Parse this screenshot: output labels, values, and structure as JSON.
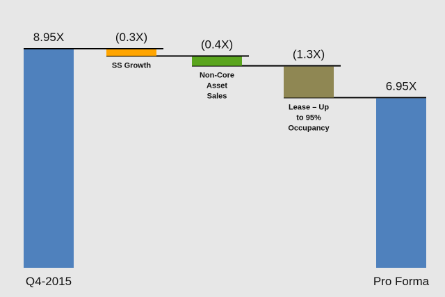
{
  "chart_data": {
    "type": "bar",
    "subtype": "waterfall",
    "categories": [
      "Q4-2015",
      "SS Growth",
      "Non-Core Asset Sales",
      "Lease – Up to 95% Occupancy",
      "Pro Forma"
    ],
    "values": [
      8.95,
      -0.3,
      -0.4,
      -1.3,
      6.95
    ],
    "value_labels": [
      "8.95X",
      "(0.3X)",
      "(0.4X)",
      "(1.3X)",
      "6.95X"
    ],
    "bar_kinds": [
      "total",
      "delta",
      "delta",
      "delta",
      "total"
    ],
    "label_lines": [
      [
        "Q4-2015"
      ],
      [
        "SS Growth"
      ],
      [
        "Non-Core",
        "Asset",
        "Sales"
      ],
      [
        "Lease – Up",
        "to 95%",
        "Occupancy"
      ],
      [
        "Pro Forma"
      ]
    ],
    "colors": [
      "#4f81bd",
      "#ffa500",
      "#5aa51e",
      "#8f8753",
      "#4f81bd"
    ],
    "title": "",
    "xlabel": "",
    "ylabel": "",
    "ylim": [
      0,
      8.95
    ],
    "grid": false,
    "legend": "none"
  }
}
